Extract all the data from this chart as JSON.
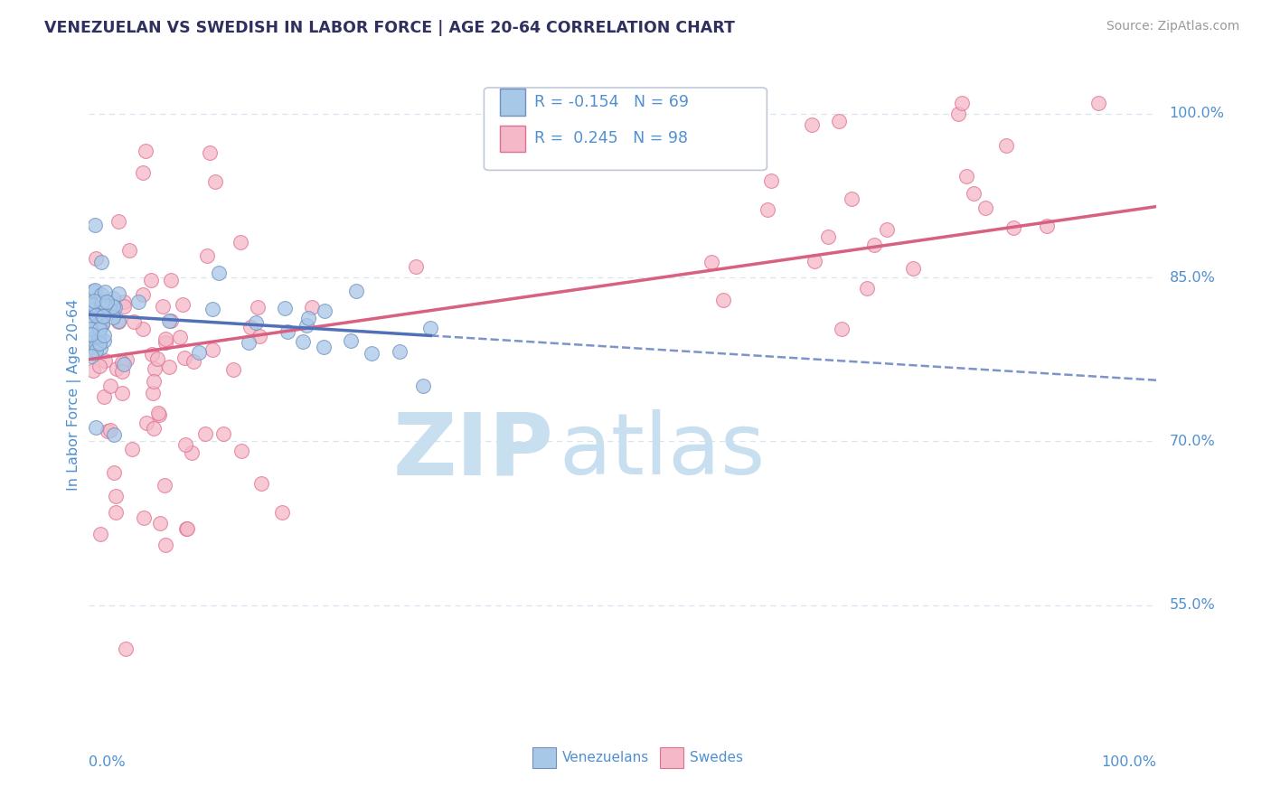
{
  "title": "VENEZUELAN VS SWEDISH IN LABOR FORCE | AGE 20-64 CORRELATION CHART",
  "source": "Source: ZipAtlas.com",
  "ylabel": "In Labor Force | Age 20-64",
  "ytick_labels": [
    "55.0%",
    "70.0%",
    "85.0%",
    "100.0%"
  ],
  "ytick_values": [
    0.55,
    0.7,
    0.85,
    1.0
  ],
  "xrange": [
    0.0,
    1.0
  ],
  "yrange": [
    0.44,
    1.045
  ],
  "legend_r_blue": "-0.154",
  "legend_n_blue": "69",
  "legend_r_pink": "0.245",
  "legend_n_pink": "98",
  "legend_label_blue": "Venezuelans",
  "legend_label_pink": "Swedes",
  "blue_scatter_color": "#a8c8e8",
  "pink_scatter_color": "#f5b8c8",
  "blue_edge_color": "#7090c0",
  "pink_edge_color": "#e07090",
  "blue_line_color": "#5070b8",
  "pink_line_color": "#d86080",
  "title_color": "#303060",
  "axis_label_color": "#5090d0",
  "grid_color": "#d8e4f0",
  "watermark_color": "#c8dff0",
  "blue_trendline_start_x": 0.0,
  "blue_trendline_end_solid_x": 0.32,
  "blue_trendline_start_y": 0.816,
  "blue_trendline_end_y": 0.756,
  "pink_trendline_start_x": 0.0,
  "pink_trendline_end_x": 1.0,
  "pink_trendline_start_y": 0.775,
  "pink_trendline_end_y": 0.915
}
